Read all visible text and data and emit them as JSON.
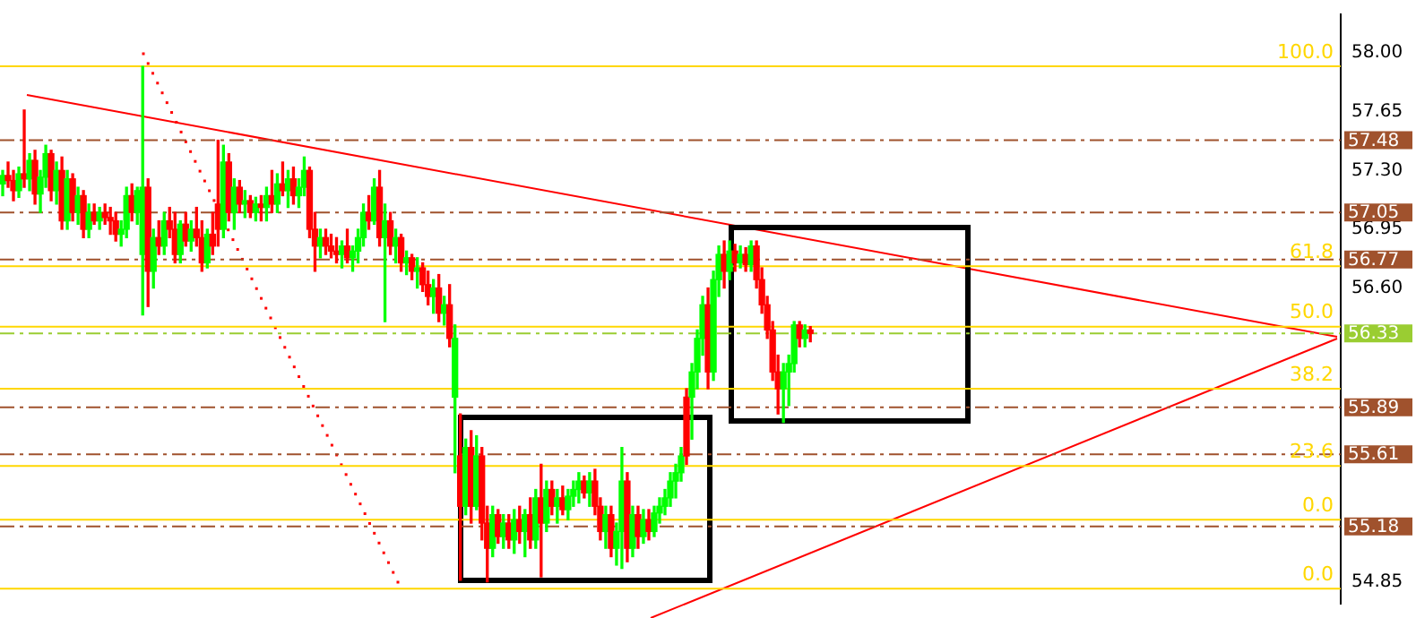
{
  "chart_data": {
    "type": "candlestick",
    "categories": [
      null,
      null,
      null,
      null,
      null,
      null,
      null,
      null,
      null,
      null,
      null,
      null,
      null,
      null,
      null,
      null,
      null,
      null,
      null,
      null,
      null,
      null,
      null,
      null,
      null,
      null,
      null,
      null,
      null,
      null,
      null,
      null,
      null,
      null,
      null,
      null,
      null,
      null,
      null,
      null,
      null,
      null,
      null,
      null,
      null,
      null,
      null,
      null,
      null,
      null,
      null,
      null,
      null,
      null,
      null,
      null,
      null,
      null,
      null,
      null,
      null,
      null,
      null,
      null,
      null,
      null,
      null,
      null,
      null,
      null,
      null,
      null,
      null,
      null,
      null,
      null,
      null,
      null,
      null,
      null,
      null,
      null,
      null,
      null,
      null,
      null,
      null,
      null,
      null,
      null,
      null,
      null,
      null,
      null,
      null,
      null,
      null,
      null,
      null,
      null,
      null,
      null,
      null,
      null,
      null,
      null,
      null,
      null,
      null,
      null,
      null,
      null,
      null,
      null,
      null,
      null,
      null,
      null,
      null,
      null,
      null,
      null,
      null,
      null,
      null,
      null,
      null,
      null,
      null,
      null,
      null,
      null,
      null,
      null,
      null,
      null,
      null,
      null,
      null,
      null,
      null,
      null,
      null,
      null,
      null,
      null,
      null,
      null,
      null,
      null,
      null,
      null,
      null,
      null,
      null,
      null,
      null,
      null,
      null,
      null,
      null,
      null,
      null,
      null,
      null,
      null,
      null,
      null,
      null,
      null,
      null,
      null,
      null,
      null,
      null,
      null,
      null,
      null,
      null,
      null,
      null,
      null,
      null,
      null,
      null,
      null,
      null,
      null,
      null,
      null,
      null,
      null,
      null,
      null,
      null,
      null,
      null,
      null,
      null,
      null,
      null,
      null,
      null,
      null,
      null,
      null,
      null,
      null,
      null,
      null,
      null,
      null,
      null,
      null,
      null,
      null,
      null,
      null,
      null,
      null,
      null,
      null,
      null,
      null,
      null,
      null,
      null,
      null,
      null,
      null,
      null,
      null,
      null,
      null,
      null,
      null,
      null,
      null,
      null,
      null,
      null,
      null,
      null,
      null,
      null,
      null,
      null,
      null,
      null
    ],
    "ohlc": [
      [
        57.22,
        57.3,
        57.15,
        57.27
      ],
      [
        57.27,
        57.35,
        57.2,
        57.24
      ],
      [
        57.24,
        57.3,
        57.12,
        57.18
      ],
      [
        57.18,
        57.32,
        57.14,
        57.28
      ],
      [
        57.28,
        57.66,
        57.2,
        57.25
      ],
      [
        57.25,
        57.4,
        57.18,
        57.36
      ],
      [
        57.36,
        57.42,
        57.1,
        57.16
      ],
      [
        57.16,
        57.3,
        57.05,
        57.26
      ],
      [
        57.26,
        57.45,
        57.2,
        57.4
      ],
      [
        57.4,
        57.42,
        57.12,
        57.18
      ],
      [
        57.18,
        57.35,
        57.1,
        57.3
      ],
      [
        57.3,
        57.38,
        56.95,
        57.0
      ],
      [
        57.0,
        57.3,
        56.95,
        57.25
      ],
      [
        57.25,
        57.28,
        57.0,
        57.05
      ],
      [
        57.05,
        57.2,
        56.98,
        57.15
      ],
      [
        57.15,
        57.18,
        56.9,
        56.95
      ],
      [
        56.95,
        57.1,
        56.9,
        57.05
      ],
      [
        57.05,
        57.1,
        56.98,
        57.0
      ],
      [
        57.0,
        57.08,
        56.95,
        57.05
      ],
      [
        57.05,
        57.1,
        56.98,
        57.02
      ],
      [
        57.02,
        57.08,
        56.92,
        57.0
      ],
      [
        57.0,
        57.05,
        56.88,
        56.92
      ],
      [
        56.92,
        57.0,
        56.85,
        56.95
      ],
      [
        56.95,
        57.2,
        56.9,
        57.15
      ],
      [
        57.15,
        57.22,
        57.0,
        57.05
      ],
      [
        57.05,
        57.2,
        56.98,
        57.18
      ],
      [
        56.8,
        57.92,
        56.44,
        57.2
      ],
      [
        57.2,
        57.25,
        56.49,
        56.7
      ],
      [
        56.7,
        56.95,
        56.6,
        56.9
      ],
      [
        56.9,
        57.0,
        56.8,
        56.85
      ],
      [
        56.85,
        57.05,
        56.8,
        57.0
      ],
      [
        57.0,
        57.08,
        56.9,
        56.95
      ],
      [
        56.95,
        57.05,
        56.75,
        56.8
      ],
      [
        56.8,
        57.0,
        56.75,
        56.98
      ],
      [
        56.98,
        57.05,
        56.85,
        56.88
      ],
      [
        56.88,
        57.0,
        56.82,
        56.95
      ],
      [
        56.95,
        57.08,
        56.85,
        56.9
      ],
      [
        56.9,
        57.0,
        56.7,
        56.75
      ],
      [
        56.75,
        56.95,
        56.72,
        56.92
      ],
      [
        56.92,
        57.05,
        56.8,
        56.85
      ],
      [
        57.1,
        57.48,
        56.85,
        56.95
      ],
      [
        56.95,
        57.45,
        56.9,
        57.35
      ],
      [
        57.35,
        57.4,
        57.0,
        57.05
      ],
      [
        57.05,
        57.25,
        56.95,
        57.2
      ],
      [
        57.2,
        57.24,
        57.05,
        57.1
      ],
      [
        57.1,
        57.18,
        57.02,
        57.12
      ],
      [
        57.12,
        57.15,
        57.02,
        57.05
      ],
      [
        57.05,
        57.14,
        57.0,
        57.1
      ],
      [
        57.1,
        57.15,
        57.0,
        57.08
      ],
      [
        57.08,
        57.2,
        57.0,
        57.15
      ],
      [
        57.15,
        57.3,
        57.05,
        57.1
      ],
      [
        57.1,
        57.28,
        57.05,
        57.22
      ],
      [
        57.22,
        57.35,
        57.15,
        57.18
      ],
      [
        57.18,
        57.3,
        57.08,
        57.25
      ],
      [
        57.25,
        57.32,
        57.1,
        57.15
      ],
      [
        57.15,
        57.25,
        57.08,
        57.2
      ],
      [
        57.2,
        57.38,
        57.15,
        57.3
      ],
      [
        57.3,
        57.32,
        56.9,
        56.95
      ],
      [
        56.95,
        57.05,
        56.7,
        56.85
      ],
      [
        56.85,
        56.95,
        56.78,
        56.9
      ],
      [
        56.9,
        56.95,
        56.8,
        56.85
      ],
      [
        56.85,
        56.92,
        56.78,
        56.82
      ],
      [
        56.82,
        56.9,
        56.75,
        56.8
      ],
      [
        56.8,
        56.88,
        56.72,
        56.85
      ],
      [
        56.85,
        56.95,
        56.75,
        56.78
      ],
      [
        56.78,
        56.85,
        56.7,
        56.82
      ],
      [
        56.82,
        56.95,
        56.75,
        56.9
      ],
      [
        56.9,
        57.1,
        56.85,
        57.05
      ],
      [
        57.05,
        57.15,
        56.95,
        57.0
      ],
      [
        57.0,
        57.25,
        56.98,
        57.2
      ],
      [
        57.2,
        57.3,
        56.85,
        56.9
      ],
      [
        56.9,
        57.1,
        56.4,
        57.0
      ],
      [
        57.0,
        57.05,
        56.8,
        56.85
      ],
      [
        56.85,
        56.95,
        56.75,
        56.9
      ],
      [
        56.9,
        56.92,
        56.7,
        56.75
      ],
      [
        56.75,
        56.82,
        56.68,
        56.78
      ],
      [
        56.78,
        56.8,
        56.65,
        56.7
      ],
      [
        56.7,
        56.78,
        56.6,
        56.72
      ],
      [
        56.72,
        56.75,
        56.58,
        56.62
      ],
      [
        56.62,
        56.7,
        56.5,
        56.55
      ],
      [
        56.55,
        56.65,
        56.45,
        56.6
      ],
      [
        56.6,
        56.68,
        56.4,
        56.45
      ],
      [
        56.45,
        56.55,
        56.38,
        56.5
      ],
      [
        56.5,
        56.62,
        56.25,
        56.3
      ],
      [
        55.95,
        56.38,
        55.5,
        56.3
      ],
      [
        55.6,
        55.85,
        54.86,
        55.3
      ],
      [
        55.3,
        55.7,
        55.25,
        55.65
      ],
      [
        55.65,
        55.75,
        55.2,
        55.3
      ],
      [
        55.3,
        55.72,
        55.28,
        55.6
      ],
      [
        55.6,
        55.65,
        55.1,
        55.2
      ],
      [
        55.2,
        55.3,
        54.85,
        55.05
      ],
      [
        55.05,
        55.3,
        55.0,
        55.25
      ],
      [
        55.25,
        55.28,
        55.08,
        55.12
      ],
      [
        55.12,
        55.25,
        55.05,
        55.2
      ],
      [
        55.2,
        55.25,
        55.05,
        55.1
      ],
      [
        55.1,
        55.28,
        55.02,
        55.22
      ],
      [
        55.22,
        55.3,
        55.08,
        55.15
      ],
      [
        55.15,
        55.28,
        55.0,
        55.25
      ],
      [
        55.25,
        55.35,
        55.05,
        55.1
      ],
      [
        55.1,
        55.4,
        55.05,
        55.35
      ],
      [
        55.35,
        55.55,
        54.88,
        55.2
      ],
      [
        55.2,
        55.45,
        55.15,
        55.4
      ],
      [
        55.4,
        55.45,
        55.25,
        55.3
      ],
      [
        55.3,
        55.4,
        55.2,
        55.35
      ],
      [
        55.35,
        55.42,
        55.25,
        55.28
      ],
      [
        55.28,
        55.4,
        55.22,
        55.36
      ],
      [
        55.36,
        55.45,
        55.3,
        55.4
      ],
      [
        55.4,
        55.5,
        55.32,
        55.45
      ],
      [
        55.45,
        55.48,
        55.35,
        55.38
      ],
      [
        55.38,
        55.5,
        55.3,
        55.45
      ],
      [
        55.45,
        55.52,
        55.25,
        55.3
      ],
      [
        55.3,
        55.35,
        55.1,
        55.15
      ],
      [
        55.15,
        55.3,
        55.05,
        55.25
      ],
      [
        55.25,
        55.3,
        55.0,
        55.05
      ],
      [
        55.05,
        55.2,
        54.95,
        55.15
      ],
      [
        55.15,
        55.65,
        54.93,
        55.45
      ],
      [
        55.45,
        55.5,
        54.97,
        55.05
      ],
      [
        55.05,
        55.3,
        55.0,
        55.25
      ],
      [
        55.25,
        55.3,
        55.05,
        55.12
      ],
      [
        55.12,
        55.28,
        55.08,
        55.22
      ],
      [
        55.22,
        55.28,
        55.1,
        55.15
      ],
      [
        55.15,
        55.3,
        55.12,
        55.26
      ],
      [
        55.26,
        55.35,
        55.2,
        55.3
      ],
      [
        55.3,
        55.4,
        55.25,
        55.35
      ],
      [
        55.35,
        55.5,
        55.3,
        55.45
      ],
      [
        55.45,
        55.55,
        55.35,
        55.5
      ],
      [
        55.5,
        55.65,
        55.45,
        55.6
      ],
      [
        55.95,
        56.0,
        55.55,
        55.6
      ],
      [
        55.95,
        56.15,
        55.7,
        56.1
      ],
      [
        56.1,
        56.35,
        56.0,
        56.3
      ],
      [
        56.3,
        56.55,
        56.2,
        56.5
      ],
      [
        56.5,
        56.6,
        56.0,
        56.1
      ],
      [
        56.1,
        56.7,
        56.05,
        56.65
      ],
      [
        56.65,
        56.85,
        56.55,
        56.8
      ],
      [
        56.8,
        56.88,
        56.6,
        56.7
      ],
      [
        56.7,
        56.88,
        56.65,
        56.82
      ],
      [
        56.82,
        56.86,
        56.7,
        56.75
      ],
      [
        56.75,
        56.85,
        56.72,
        56.8
      ],
      [
        56.8,
        56.84,
        56.7,
        56.74
      ],
      [
        56.74,
        56.88,
        56.7,
        56.85
      ],
      [
        56.85,
        56.88,
        56.6,
        56.65
      ],
      [
        56.65,
        56.72,
        56.45,
        56.5
      ],
      [
        56.5,
        56.55,
        56.3,
        56.35
      ],
      [
        56.35,
        56.4,
        56.05,
        56.1
      ],
      [
        56.1,
        56.2,
        55.85,
        56.0
      ],
      [
        56.0,
        56.15,
        55.8,
        56.1
      ],
      [
        56.1,
        56.2,
        55.9,
        56.15
      ],
      [
        56.15,
        56.4,
        56.1,
        56.38
      ],
      [
        56.38,
        56.4,
        56.25,
        56.3
      ],
      [
        56.3,
        56.38,
        56.25,
        56.35
      ],
      [
        56.35,
        56.37,
        56.28,
        56.33
      ],
      null,
      null,
      null,
      null,
      null,
      null,
      null,
      null,
      null,
      null,
      null,
      null,
      null,
      null,
      null,
      null,
      null,
      null,
      null,
      null,
      null,
      null,
      null,
      null,
      null,
      null,
      null,
      null,
      null,
      null,
      null,
      null,
      null,
      null,
      null,
      null,
      null,
      null,
      null,
      null,
      null,
      null,
      null,
      null,
      null,
      null,
      null,
      null,
      null,
      null,
      null,
      null,
      null,
      null,
      null,
      null,
      null,
      null,
      null,
      null,
      null,
      null,
      null,
      null,
      null,
      null,
      null,
      null,
      null,
      null,
      null,
      null,
      null,
      null,
      null,
      null,
      null,
      null,
      null,
      null,
      null,
      null,
      null,
      null,
      null,
      null,
      null,
      null,
      null,
      null,
      null,
      null,
      null,
      null,
      null,
      null,
      null,
      null
    ],
    "ylim": [
      54.72,
      58.23
    ],
    "yticks": [
      {
        "value": 58,
        "label": "58.00"
      },
      {
        "value": 57.65,
        "label": "57.65"
      },
      {
        "value": 57.3,
        "label": "57.30"
      },
      {
        "value": 56.95,
        "label": "56.95"
      },
      {
        "value": 56.6,
        "label": "56.60"
      },
      {
        "value": 54.85,
        "label": "54.85"
      }
    ],
    "tick_labels": "y",
    "grid": false,
    "annotations": [
      {
        "text": "100.0",
        "y": 57.92
      },
      {
        "text": "61.8",
        "y": 56.73
      },
      {
        "text": "50.0",
        "y": 56.37
      },
      {
        "text": "38.2",
        "y": 56.0
      },
      {
        "text": "23.6",
        "y": 55.54
      },
      {
        "text": "0.0",
        "y": 55.22
      },
      {
        "text": "0.0",
        "y": 54.81
      }
    ],
    "ref_lines": [
      {
        "axis": "y",
        "value": 57.92,
        "color": "#ffd700",
        "line_style": "solid"
      },
      {
        "axis": "y",
        "value": 56.73,
        "color": "#ffd700",
        "line_style": "solid"
      },
      {
        "axis": "y",
        "value": 56.37,
        "color": "#ffd700",
        "line_style": "solid"
      },
      {
        "axis": "y",
        "value": 56.0,
        "color": "#ffd700",
        "line_style": "solid"
      },
      {
        "axis": "y",
        "value": 55.54,
        "color": "#ffd700",
        "line_style": "solid"
      },
      {
        "axis": "y",
        "value": 55.22,
        "color": "#ffd700",
        "line_style": "solid"
      },
      {
        "axis": "y",
        "value": 54.81,
        "color": "#ffd700",
        "line_style": "solid"
      },
      {
        "axis": "y",
        "value": 57.48,
        "label": "57.48",
        "color": "#a0522d",
        "line_style": "dashed"
      },
      {
        "axis": "y",
        "value": 57.05,
        "label": "57.05",
        "color": "#a0522d",
        "line_style": "dashed"
      },
      {
        "axis": "y",
        "value": 56.77,
        "label": "56.77",
        "color": "#a0522d",
        "line_style": "dashed"
      },
      {
        "axis": "y",
        "value": 56.33,
        "label": "56.33",
        "color": "#9acd32",
        "line_style": "dashed"
      },
      {
        "axis": "y",
        "value": 55.89,
        "label": "55.89",
        "color": "#a0522d",
        "line_style": "dashed"
      },
      {
        "axis": "y",
        "value": 55.61,
        "label": "55.61",
        "color": "#a0522d",
        "line_style": "dashed"
      },
      {
        "axis": "y",
        "value": 55.18,
        "label": "55.18",
        "color": "#a0522d",
        "line_style": "dashed"
      }
    ],
    "legend": false
  }
}
